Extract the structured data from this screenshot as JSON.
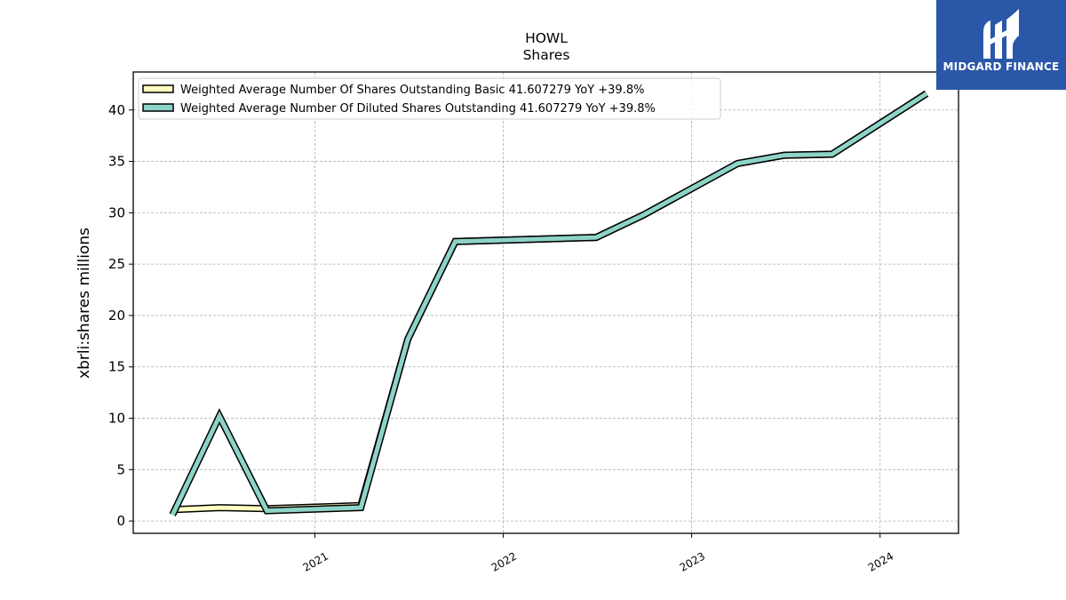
{
  "chart_data": {
    "type": "line",
    "title": "HOWL",
    "subtitle": "Shares",
    "xlabel": "",
    "ylabel": "xbrli:shares millions",
    "ylim": [
      -1.2,
      43.7
    ],
    "xlim": [
      "2020-01-15",
      "2024-06-01"
    ],
    "y_ticks": [
      0,
      5,
      10,
      15,
      20,
      25,
      30,
      35,
      40
    ],
    "x_ticks": [
      "2021",
      "2022",
      "2023",
      "2024"
    ],
    "x_tick_dates": [
      "2021-01-01",
      "2022-01-01",
      "2023-01-01",
      "2024-01-01"
    ],
    "grid": true,
    "legend_position": "upper-left",
    "series": [
      {
        "name": "Weighted Average Number Of Shares Outstanding Basic  41.607279 YoY +39.8%",
        "color": "#ffffc0",
        "x": [
          "2020-03-31",
          "2020-06-30",
          "2020-09-30",
          "2021-03-31",
          "2021-06-30",
          "2021-09-30",
          "2022-06-30",
          "2022-09-30",
          "2023-03-31",
          "2023-06-30",
          "2023-09-30",
          "2024-03-31"
        ],
        "values": [
          1.1,
          1.3,
          1.2,
          1.5,
          17.7,
          27.2,
          27.6,
          29.8,
          34.8,
          35.6,
          35.7,
          41.6
        ]
      },
      {
        "name": "Weighted Average Number Of Diluted Shares Outstanding  41.607279 YoY +39.8%",
        "color": "#8dd3c7",
        "x": [
          "2020-03-31",
          "2020-06-30",
          "2020-09-30",
          "2021-03-31",
          "2021-06-30",
          "2021-09-30",
          "2022-06-30",
          "2022-09-30",
          "2023-03-31",
          "2023-06-30",
          "2023-09-30",
          "2024-03-31"
        ],
        "values": [
          0.6,
          10.2,
          1.0,
          1.3,
          17.7,
          27.2,
          27.6,
          29.8,
          34.8,
          35.6,
          35.7,
          41.6
        ]
      }
    ]
  },
  "brand": {
    "name": "MIDGARD FINANCE",
    "logo_icon": "midgard-finance-logo-icon",
    "color": "#2b57a8"
  }
}
